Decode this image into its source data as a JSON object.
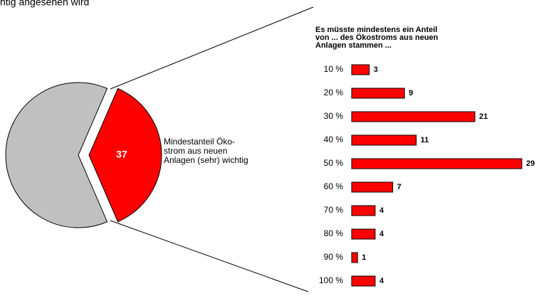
{
  "header": {
    "text": "htig angesehen wird"
  },
  "chart_data": [
    {
      "type": "pie",
      "values": [
        37,
        63
      ],
      "colors": [
        "#ff0000",
        "#c0c0c0"
      ],
      "annotation": [
        "Mindestanteil Öko-",
        "strom aus neuen",
        "Anlagen (sehr) wichtig"
      ]
    },
    {
      "type": "bar",
      "title": [
        "Es müsste mindestens ein Anteil",
        "von ... des Ökostroms aus neuen",
        "Anlagen stammen ..."
      ],
      "categories": [
        "10 %",
        "20 %",
        "30 %",
        "40 %",
        "50 %",
        "60 %",
        "70 %",
        "80 %",
        "90 %",
        "100 %"
      ],
      "values": [
        3,
        9,
        21,
        11,
        29,
        7,
        4,
        4,
        1,
        4
      ],
      "color": "#ff0000"
    }
  ]
}
